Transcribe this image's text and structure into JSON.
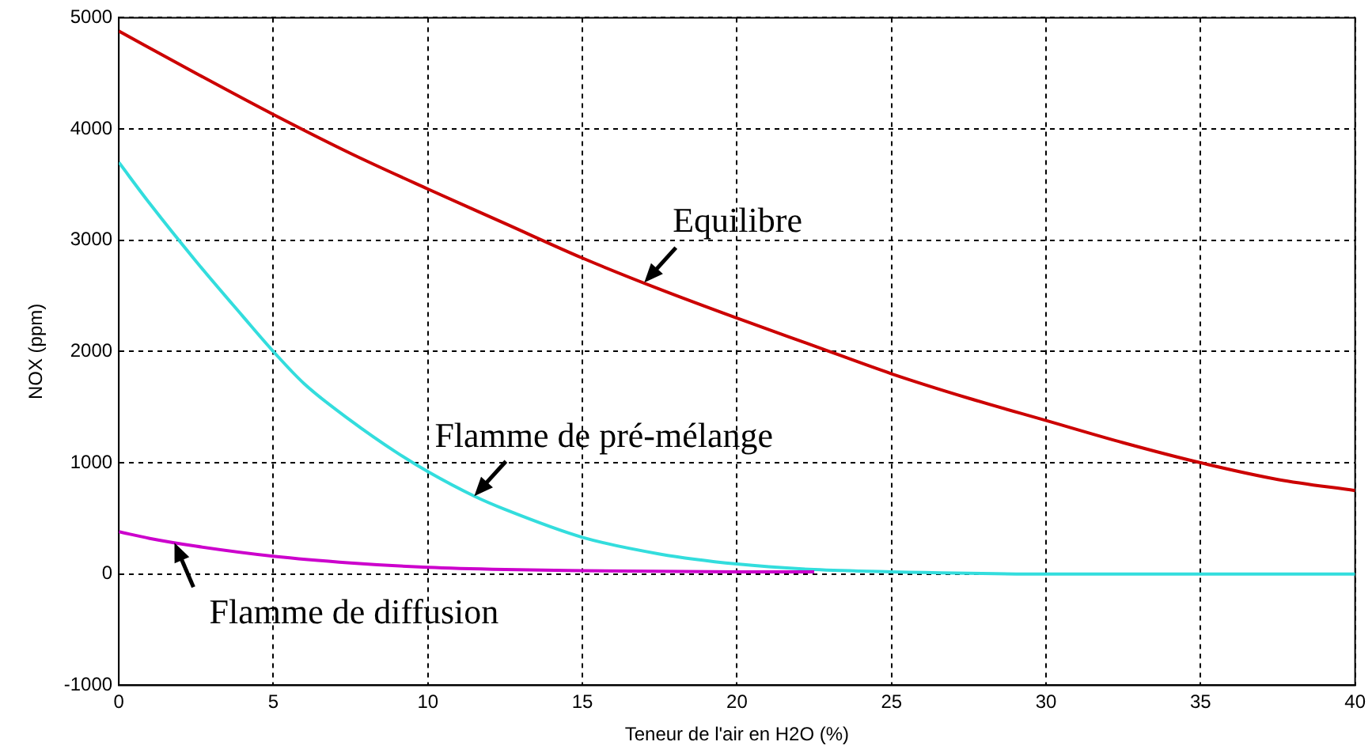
{
  "chart_data": {
    "type": "line",
    "xlabel": "Teneur de l'air en H2O (%)",
    "ylabel": "NOX (ppm)",
    "xlim": [
      0,
      40
    ],
    "xticks": [
      0,
      5,
      10,
      15,
      20,
      25,
      30,
      35,
      40
    ],
    "ylim": [
      -1000,
      5000
    ],
    "yticks": [
      -1000,
      0,
      1000,
      2000,
      3000,
      4000,
      5000
    ],
    "grid": true,
    "legend": false,
    "marker": "none",
    "line_style": "solid",
    "series": [
      {
        "color": "#cc0000",
        "x": [
          0,
          2.5,
          5,
          7.5,
          10,
          12.5,
          15,
          17.5,
          20,
          22.5,
          25,
          27.5,
          30,
          32.5,
          35,
          37.5,
          40
        ],
        "values": [
          4880,
          4500,
          4130,
          3780,
          3460,
          3150,
          2840,
          2560,
          2300,
          2050,
          1800,
          1580,
          1380,
          1180,
          1000,
          850,
          750
        ]
      },
      {
        "color": "#cc00cc",
        "x": [
          0,
          1,
          2.5,
          5,
          7.5,
          10,
          12.5,
          15,
          20,
          22.5
        ],
        "values": [
          380,
          320,
          250,
          160,
          100,
          60,
          40,
          30,
          20,
          20
        ]
      },
      {
        "color": "#33dddd",
        "x": [
          0,
          1,
          2.5,
          4,
          5,
          6,
          7.5,
          9,
          10,
          11.5,
          12.5,
          15,
          17.5,
          20,
          22.5,
          25,
          30,
          35,
          40
        ],
        "values": [
          3700,
          3330,
          2810,
          2320,
          2000,
          1710,
          1380,
          1090,
          920,
          700,
          580,
          330,
          180,
          90,
          40,
          20,
          0,
          0,
          0
        ]
      }
    ],
    "annotations": [
      {
        "text": "Equilibre",
        "x": 17,
        "y": 2620
      },
      {
        "text": "Flamme de pré-mélange",
        "x": 11.5,
        "y": 700
      },
      {
        "text": "Flamme de diffusion",
        "x": 1.8,
        "y": 280
      }
    ]
  }
}
